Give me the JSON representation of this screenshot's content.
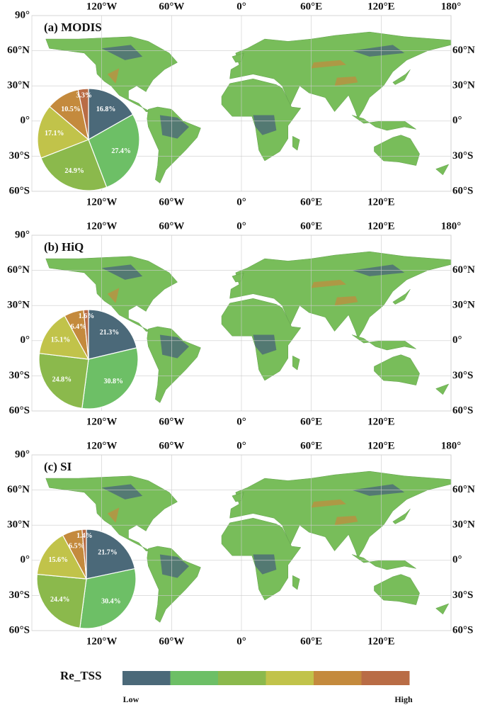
{
  "chart_data": [
    {
      "type": "pie",
      "title": "(a) MODIS",
      "values": [
        16.8,
        27.4,
        24.9,
        17.1,
        10.5,
        3.3
      ],
      "value_labels": [
        "16.8%",
        "27.4%",
        "24.9%",
        "17.1%",
        "10.5%",
        "3.3%"
      ]
    },
    {
      "type": "pie",
      "title": "(b) HiQ",
      "values": [
        21.3,
        30.8,
        24.8,
        15.1,
        6.4,
        1.6
      ],
      "value_labels": [
        "21.3%",
        "30.8%",
        "24.8%",
        "15.1%",
        "6.4%",
        "1.6%"
      ]
    },
    {
      "type": "pie",
      "title": "(c) SI",
      "values": [
        21.7,
        30.4,
        24.4,
        15.6,
        6.5,
        1.4
      ],
      "value_labels": [
        "21.7%",
        "30.4%",
        "24.4%",
        "15.6%",
        "6.5%",
        "1.4%"
      ]
    }
  ],
  "map": {
    "xlim": [
      -180,
      180
    ],
    "ylim": [
      -60,
      90
    ],
    "top_xticks": [
      {
        "value": -120,
        "label": "120°W"
      },
      {
        "value": -60,
        "label": "60°W"
      },
      {
        "value": 0,
        "label": "0°"
      },
      {
        "value": 60,
        "label": "60°E"
      },
      {
        "value": 120,
        "label": "120°E"
      },
      {
        "value": 180,
        "label": "180°"
      }
    ],
    "bottom_xticks": [
      {
        "value": -120,
        "label": "120°W"
      },
      {
        "value": -60,
        "label": "60°W"
      },
      {
        "value": 0,
        "label": "0°"
      },
      {
        "value": 60,
        "label": "60°E"
      },
      {
        "value": 120,
        "label": "120°E"
      }
    ],
    "left_yticks": [
      {
        "value": 90,
        "label": "90°"
      },
      {
        "value": 60,
        "label": "60°N"
      },
      {
        "value": 30,
        "label": "30°N"
      },
      {
        "value": 0,
        "label": "0°"
      },
      {
        "value": -30,
        "label": "30°S"
      },
      {
        "value": -60,
        "label": "60°S"
      }
    ],
    "right_yticks": [
      {
        "value": 60,
        "label": "60°N"
      },
      {
        "value": 30,
        "label": "30°N"
      },
      {
        "value": 0,
        "label": "0°"
      },
      {
        "value": -30,
        "label": "30°S"
      },
      {
        "value": -60,
        "label": "60°S"
      }
    ],
    "grid": true
  },
  "legend": {
    "title": "Re_TSS",
    "low": "Low",
    "high": "High",
    "colors": [
      "#4b6979",
      "#6dbf66",
      "#8bb94c",
      "#c1c34a",
      "#c48a3d",
      "#b96c45"
    ]
  }
}
